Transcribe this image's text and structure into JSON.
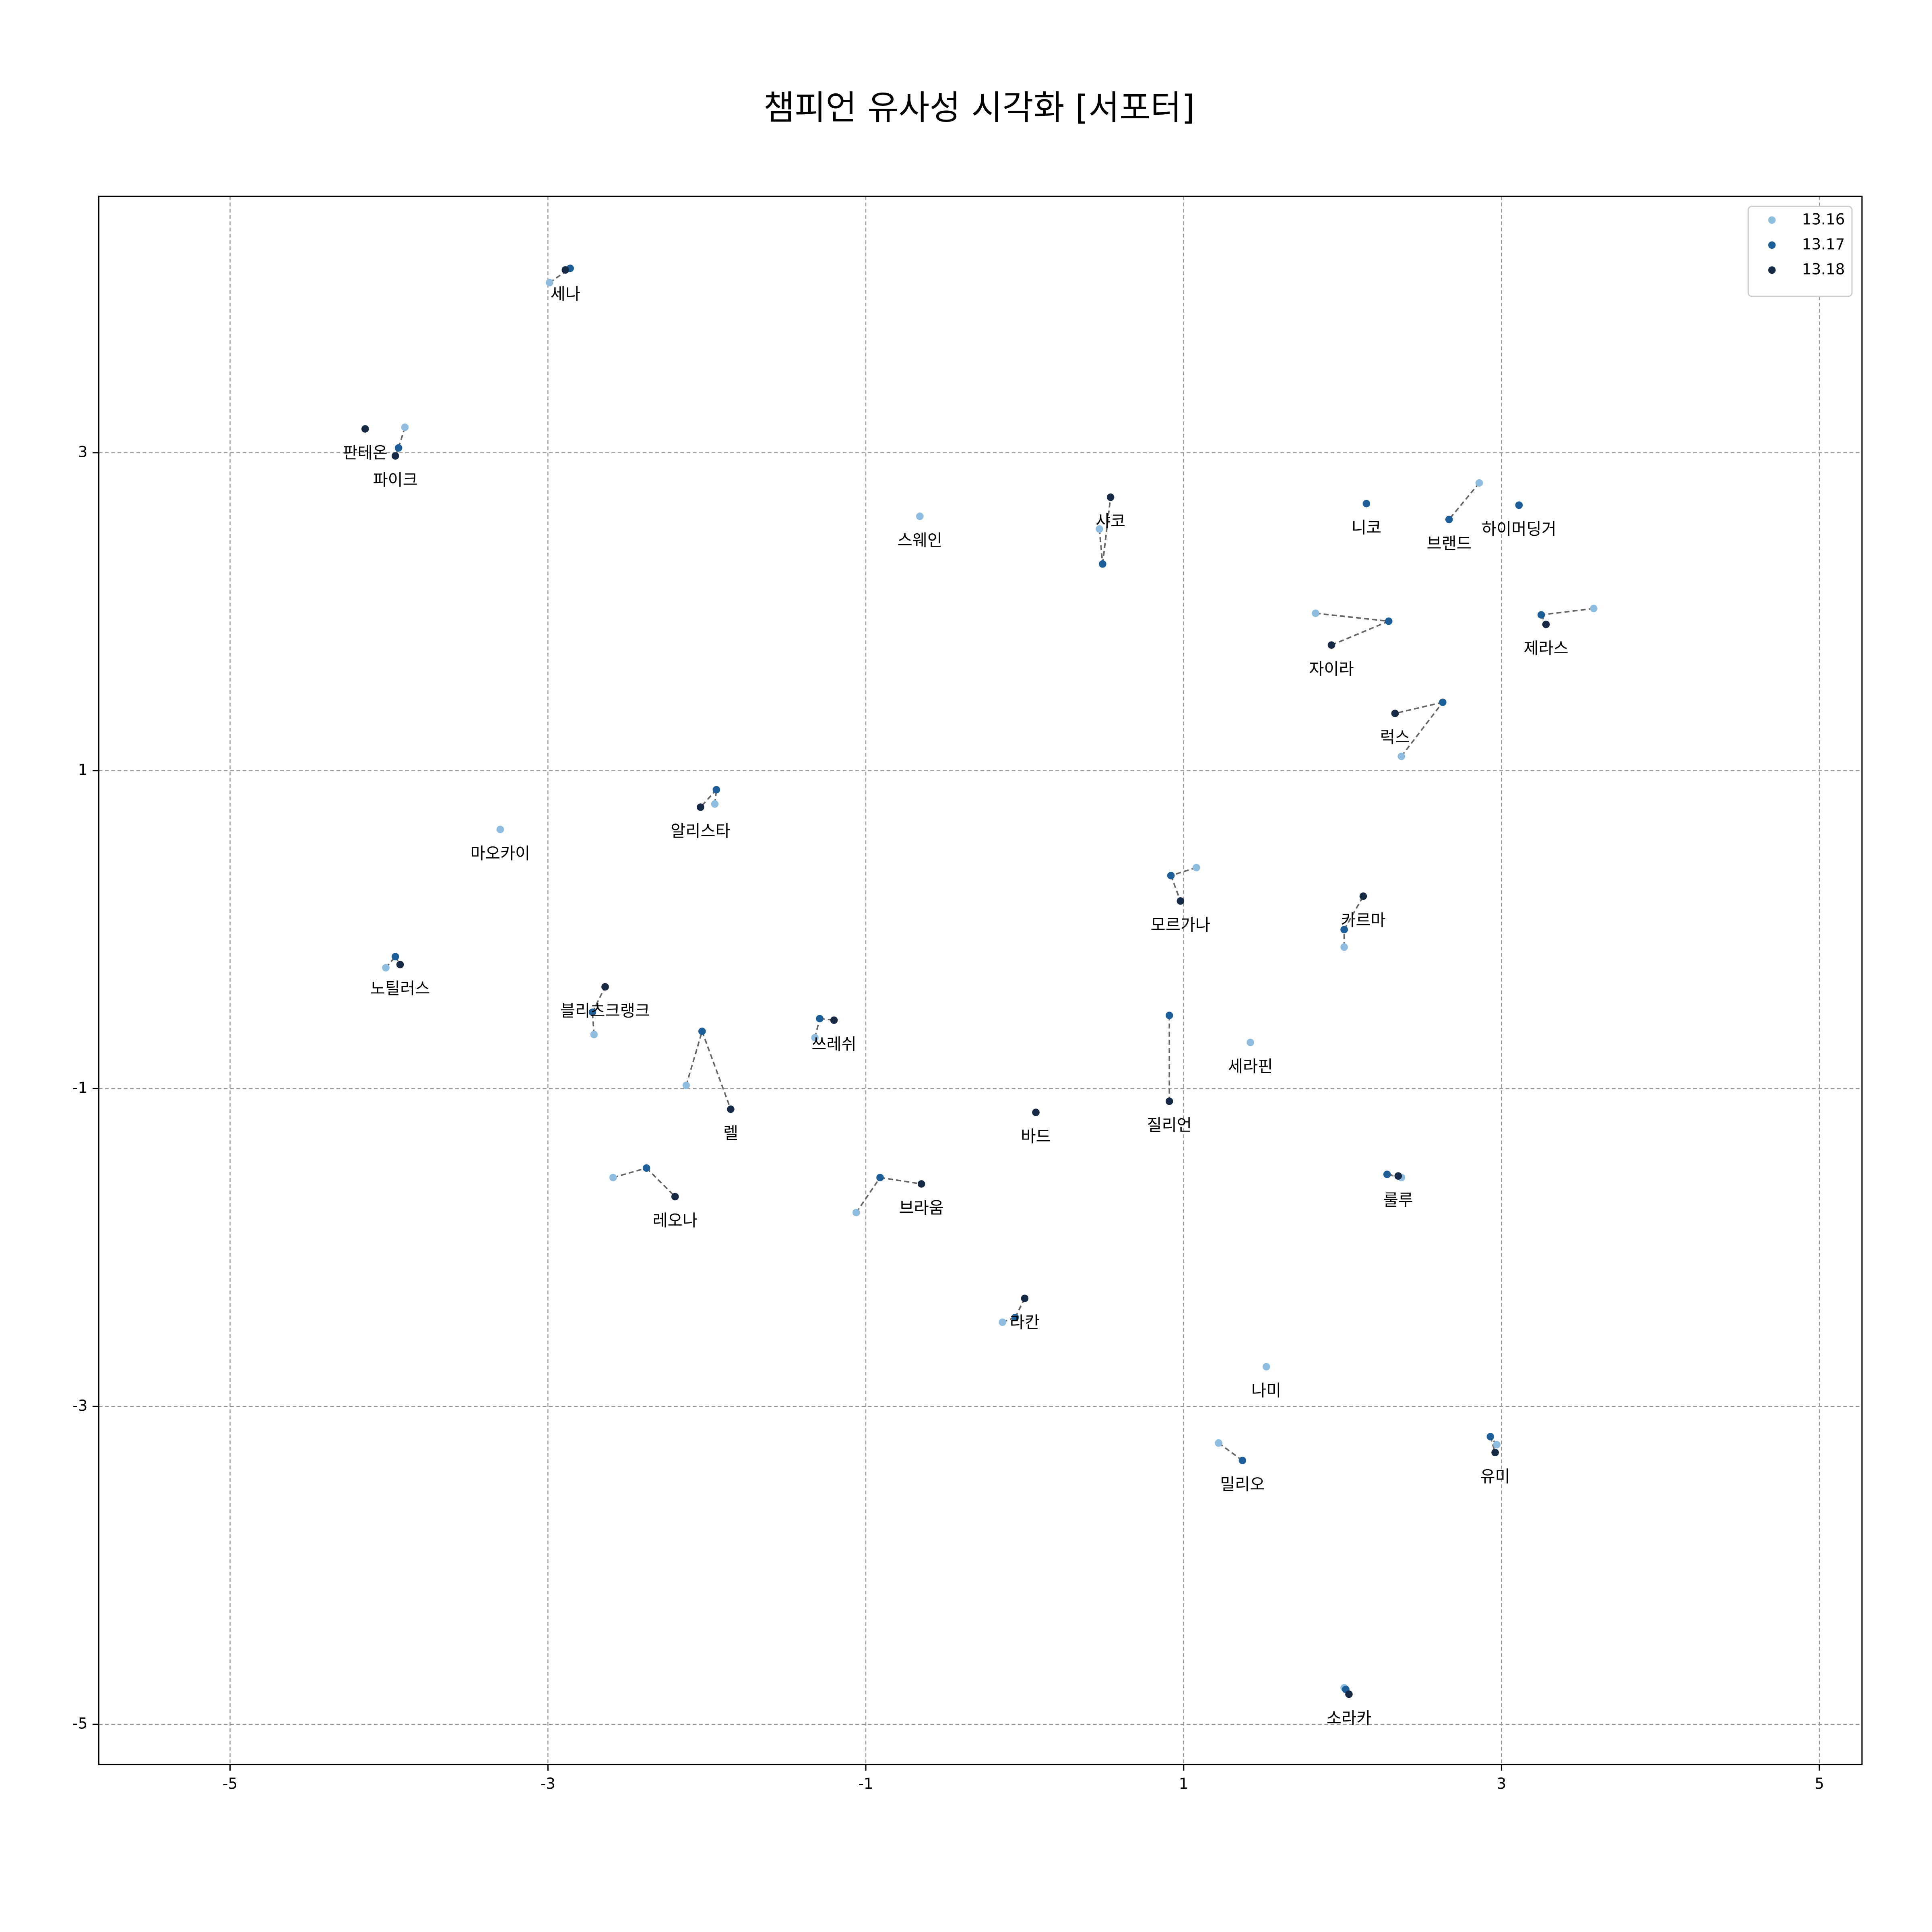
{
  "chart_data": {
    "type": "scatter",
    "title": "챔피언 유사성 시각화 [서포터]",
    "xlim": [
      -5.826,
      5.268
    ],
    "ylim": [
      -5.252,
      4.613
    ],
    "xticks": [
      -5,
      -3,
      -1,
      1,
      3,
      5
    ],
    "yticks": [
      3,
      1,
      -1,
      -3,
      -5
    ],
    "grid": true,
    "legend": "upper right",
    "champions": [
      "세나",
      "판테온",
      "파이크",
      "스웨인",
      "샤코",
      "니코",
      "브랜드",
      "하이머딩거",
      "자이라",
      "제라스",
      "럭스",
      "알리스타",
      "마오카이",
      "모르가나",
      "카르마",
      "노틸러스",
      "블리츠크랭크",
      "쓰레쉬",
      "렐",
      "세라핀",
      "질리언",
      "바드",
      "레오나",
      "브라움",
      "룰루",
      "라칸",
      "나미",
      "밀리오",
      "유미",
      "소라카"
    ],
    "series": [
      {
        "name": "13.16",
        "color": "#8fbde0",
        "x": [
          -2.99,
          null,
          -3.9,
          -0.66,
          0.47,
          null,
          2.86,
          null,
          1.83,
          3.58,
          2.37,
          -1.95,
          -3.3,
          1.08,
          2.01,
          -4.02,
          -2.71,
          -1.32,
          -2.13,
          1.42,
          null,
          null,
          -2.59,
          -1.06,
          2.37,
          -0.14,
          1.52,
          1.22,
          2.97,
          2.01
        ],
        "y": [
          4.07,
          null,
          3.16,
          2.6,
          2.52,
          null,
          2.81,
          null,
          1.99,
          2.02,
          1.09,
          0.79,
          0.63,
          0.39,
          -0.11,
          -0.24,
          -0.66,
          -0.68,
          -0.98,
          -0.71,
          null,
          null,
          -1.56,
          -1.78,
          -1.56,
          -2.47,
          -2.75,
          -3.23,
          -3.24,
          -4.77
        ]
      },
      {
        "name": "13.17",
        "color": "#1f5f99",
        "x": [
          -2.86,
          null,
          -3.94,
          null,
          0.49,
          2.15,
          2.67,
          3.11,
          2.29,
          3.25,
          2.63,
          -1.94,
          null,
          0.92,
          2.01,
          -3.96,
          -2.72,
          -1.29,
          -2.03,
          null,
          0.91,
          null,
          -2.38,
          -0.91,
          2.28,
          -0.06,
          null,
          1.37,
          2.93,
          2.02
        ],
        "y": [
          4.16,
          null,
          3.03,
          null,
          2.3,
          2.68,
          2.58,
          2.67,
          1.94,
          1.98,
          1.43,
          0.88,
          null,
          0.34,
          0.0,
          -0.17,
          -0.52,
          -0.56,
          -0.64,
          null,
          -0.54,
          null,
          -1.5,
          -1.56,
          -1.54,
          -2.44,
          null,
          -3.34,
          -3.19,
          -4.78
        ]
      },
      {
        "name": "13.18",
        "color": "#172a45",
        "x": [
          -2.89,
          -4.15,
          -3.96,
          null,
          0.54,
          null,
          null,
          null,
          1.93,
          3.28,
          2.33,
          -2.04,
          null,
          0.98,
          2.13,
          -3.93,
          -2.64,
          -1.2,
          -1.85,
          null,
          0.91,
          0.07,
          -2.2,
          -0.65,
          2.35,
          0.0,
          null,
          null,
          2.96,
          2.04
        ],
        "y": [
          4.15,
          3.15,
          2.98,
          null,
          2.72,
          null,
          null,
          null,
          1.79,
          1.92,
          1.36,
          0.77,
          null,
          0.18,
          0.21,
          -0.22,
          -0.36,
          -0.57,
          -1.13,
          null,
          -1.08,
          -1.15,
          -1.68,
          -1.6,
          -1.55,
          -2.32,
          null,
          null,
          -3.29,
          -4.81
        ]
      }
    ]
  }
}
